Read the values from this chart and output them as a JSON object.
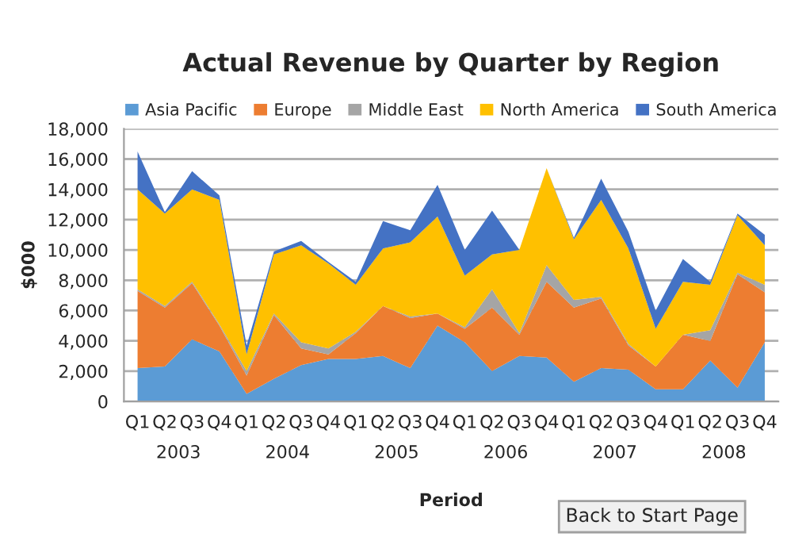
{
  "chart_data": {
    "type": "area",
    "title": "Actual Revenue by Quarter by Region",
    "xlabel": "Period",
    "ylabel": "$000",
    "categories": [
      "Q1",
      "Q2",
      "Q3",
      "Q4",
      "Q1",
      "Q2",
      "Q3",
      "Q4",
      "Q1",
      "Q2",
      "Q3",
      "Q4",
      "Q1",
      "Q2",
      "Q3",
      "Q4",
      "Q1",
      "Q2",
      "Q3",
      "Q4",
      "Q1",
      "Q2",
      "Q3",
      "Q4"
    ],
    "stacked": true,
    "series": [
      {
        "name": "Asia Pacific",
        "color": "#5b9bd5",
        "values": [
          2200,
          2300,
          4100,
          3300,
          500,
          1500,
          2400,
          2800,
          2800,
          3000,
          2200,
          5000,
          3900,
          2000,
          3000,
          2900,
          1300,
          2200,
          2100,
          800,
          800,
          2700,
          900,
          3900
        ]
      },
      {
        "name": "Europe",
        "color": "#ed7d31",
        "values": [
          5100,
          3900,
          3700,
          1700,
          1200,
          4200,
          1100,
          300,
          1700,
          3300,
          3300,
          800,
          900,
          4200,
          1400,
          5000,
          4900,
          4600,
          1600,
          1500,
          3600,
          1300,
          7500,
          3300
        ]
      },
      {
        "name": "Middle East",
        "color": "#a5a5a5",
        "values": [
          100,
          100,
          100,
          100,
          300,
          100,
          400,
          400,
          100,
          0,
          100,
          0,
          100,
          1200,
          100,
          1100,
          500,
          100,
          100,
          0,
          0,
          700,
          100,
          500
        ]
      },
      {
        "name": "North America",
        "color": "#ffc000",
        "values": [
          6600,
          6100,
          6100,
          8200,
          1100,
          3900,
          6400,
          5600,
          3100,
          3800,
          4900,
          6400,
          3400,
          2300,
          5500,
          6400,
          4000,
          6400,
          6300,
          2500,
          3500,
          3000,
          3800,
          2600
        ]
      },
      {
        "name": "South America",
        "color": "#4472c4",
        "values": [
          2500,
          100,
          1200,
          300,
          600,
          200,
          300,
          100,
          200,
          1800,
          800,
          2100,
          1700,
          2900,
          0,
          0,
          100,
          1400,
          1100,
          1200,
          1500,
          200,
          100,
          700
        ]
      }
    ],
    "ylim": [
      0,
      18000
    ],
    "yticks": [
      {
        "value": 0,
        "label": "0"
      },
      {
        "value": 2000,
        "label": "2,000"
      },
      {
        "value": 4000,
        "label": "4,000"
      },
      {
        "value": 6000,
        "label": "6,000"
      },
      {
        "value": 8000,
        "label": "8,000"
      },
      {
        "value": 10000,
        "label": "10,000"
      },
      {
        "value": 12000,
        "label": "12,000"
      },
      {
        "value": 14000,
        "label": "14,000"
      },
      {
        "value": 16000,
        "label": "16,000"
      },
      {
        "value": 18000,
        "label": "18,000"
      }
    ],
    "grid": "y",
    "legend": "top",
    "annotations": [
      "2003",
      "2004",
      "2005",
      "2006",
      "2007",
      "2008",
      "Back to Start Page"
    ]
  }
}
